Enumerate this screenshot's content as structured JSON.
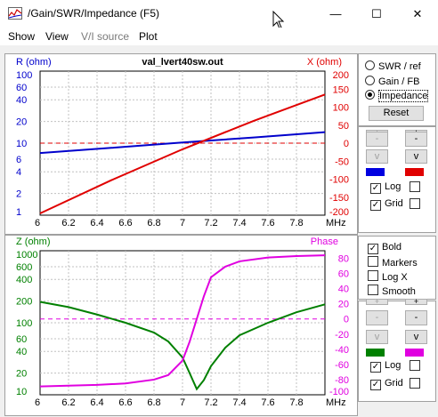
{
  "window": {
    "title": "/Gain/SWR/Impedance (F5)",
    "minimize": "—",
    "maximize": "☐",
    "close": "✕"
  },
  "menu": [
    "Show",
    "View",
    "V/I source",
    "Plot"
  ],
  "menu_disabled": [
    false,
    false,
    true,
    false
  ],
  "colors": {
    "r_curve": "#0000cc",
    "x_curve": "#e00000",
    "z_curve": "#008000",
    "phase_curve": "#e000e0",
    "grid": "#c0c0c0"
  },
  "top_chart": {
    "title": "val_lvert40sw.out",
    "left_label": "R (ohm)",
    "right_label": "X (ohm)",
    "x_unit": "MHz",
    "x_ticks": [
      "6",
      "6.2",
      "6.4",
      "6.6",
      "6.8",
      "7",
      "7.2",
      "7.4",
      "7.6",
      "7.8"
    ],
    "left_ticks": [
      "100",
      "60",
      "40",
      "20",
      "10",
      "6",
      "4",
      "2",
      "1"
    ],
    "right_ticks": [
      "200",
      "150",
      "100",
      "50",
      "0",
      "-50",
      "-100",
      "-150",
      "-200"
    ]
  },
  "bottom_chart": {
    "left_label": "Z (ohm)",
    "right_label": "Phase",
    "x_unit": "MHz",
    "x_ticks": [
      "6",
      "6.2",
      "6.4",
      "6.6",
      "6.8",
      "7",
      "7.2",
      "7.4",
      "7.6",
      "7.8"
    ],
    "left_ticks": [
      "1000",
      "600",
      "400",
      "200",
      "100",
      "60",
      "40",
      "20",
      "10"
    ],
    "right_ticks": [
      "80",
      "60",
      "40",
      "20",
      "0",
      "-20",
      "-40",
      "-60",
      "-80",
      "-100"
    ]
  },
  "chart_data": [
    {
      "type": "line",
      "title": "val_lvert40sw.out",
      "xlabel": "MHz",
      "xlim": [
        6,
        8
      ],
      "ylabel_left": "R (ohm)",
      "ylabel_right": "X (ohm)",
      "ylim_left": [
        1,
        100
      ],
      "left_scale": "log",
      "ylim_right": [
        -200,
        200
      ],
      "grid": true,
      "series": [
        {
          "name": "R (ohm)",
          "axis": "left",
          "x": [
            6.0,
            6.5,
            7.0,
            7.5,
            8.0
          ],
          "values": [
            7.3,
            8.6,
            10.2,
            12.0,
            14.2
          ]
        },
        {
          "name": "X (ohm)",
          "axis": "right",
          "x": [
            6.0,
            6.5,
            7.0,
            7.5,
            8.0
          ],
          "values": [
            -195,
            -103,
            -17,
            62,
            135
          ]
        }
      ]
    },
    {
      "type": "line",
      "xlabel": "MHz",
      "xlim": [
        6,
        8
      ],
      "ylabel_left": "Z (ohm)",
      "ylabel_right": "Phase",
      "ylim_left": [
        10,
        1000
      ],
      "left_scale": "log",
      "ylim_right": [
        -100,
        90
      ],
      "grid": true,
      "series": [
        {
          "name": "Z (ohm)",
          "axis": "left",
          "x": [
            6.0,
            6.2,
            6.4,
            6.6,
            6.8,
            6.9,
            7.0,
            7.05,
            7.1,
            7.15,
            7.2,
            7.3,
            7.4,
            7.6,
            7.8,
            8.0
          ],
          "values": [
            195,
            165,
            130,
            100,
            73,
            55,
            33,
            20,
            12,
            16,
            25,
            45,
            67,
            100,
            140,
            180
          ]
        },
        {
          "name": "Phase",
          "axis": "right",
          "x": [
            6.0,
            6.2,
            6.4,
            6.6,
            6.8,
            6.9,
            7.0,
            7.05,
            7.1,
            7.15,
            7.2,
            7.3,
            7.4,
            7.6,
            7.8,
            8.0
          ],
          "values": [
            -89,
            -88,
            -87,
            -85,
            -80,
            -74,
            -55,
            -30,
            0,
            30,
            55,
            69,
            76,
            81,
            83,
            84
          ]
        }
      ]
    }
  ],
  "right_panel": {
    "radios": [
      {
        "label": "SWR / ref",
        "checked": false
      },
      {
        "label": "Gain / FB",
        "checked": false
      },
      {
        "label": "Impedance",
        "checked": true
      }
    ],
    "reset": "Reset",
    "top_controls": {
      "plus": "+",
      "minus": "-",
      "v": "v",
      "log": "Log",
      "grid": "Grid",
      "log_checked": true,
      "grid_checked": true
    },
    "bold": "Bold",
    "markers": "Markers",
    "logx": "Log X",
    "smooth": "Smooth",
    "bold_checked": true,
    "markers_checked": false,
    "logx_checked": false,
    "smooth_checked": false,
    "bottom_controls": {
      "plus": "+",
      "minus": "-",
      "v": "v",
      "log": "Log",
      "grid": "Grid",
      "log_checked": true,
      "grid_checked": true
    },
    "checkmark": "✓"
  }
}
